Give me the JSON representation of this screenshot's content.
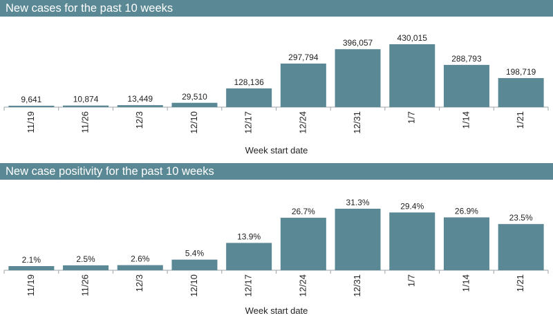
{
  "colors": {
    "band": "#5a8894",
    "bar": "#5a8894",
    "axis": "#9aa4a8",
    "text": "#222222"
  },
  "chart_data": [
    {
      "type": "bar",
      "title": "New cases for the past 10 weeks",
      "xlabel": "Week start date",
      "ylabel": "",
      "categories": [
        "11/19",
        "11/26",
        "12/3",
        "12/10",
        "12/17",
        "12/24",
        "12/31",
        "1/7",
        "1/14",
        "1/21"
      ],
      "values": [
        9641,
        10874,
        13449,
        29510,
        128136,
        297794,
        396057,
        430015,
        288793,
        198719
      ],
      "labels": [
        "9,641",
        "10,874",
        "13,449",
        "29,510",
        "128,136",
        "297,794",
        "396,057",
        "430,015",
        "288,793",
        "198,719"
      ],
      "ylim": [
        0,
        430015
      ]
    },
    {
      "type": "bar",
      "title": "New case positivity for the past 10 weeks",
      "xlabel": "Week start date",
      "ylabel": "",
      "categories": [
        "11/19",
        "11/26",
        "12/3",
        "12/10",
        "12/17",
        "12/24",
        "12/31",
        "1/7",
        "1/14",
        "1/21"
      ],
      "values": [
        2.1,
        2.5,
        2.6,
        5.4,
        13.9,
        26.7,
        31.3,
        29.4,
        26.9,
        23.5
      ],
      "labels": [
        "2.1%",
        "2.5%",
        "2.6%",
        "5.4%",
        "13.9%",
        "26.7%",
        "31.3%",
        "29.4%",
        "26.9%",
        "23.5%"
      ],
      "ylim": [
        0,
        31.3
      ]
    }
  ]
}
